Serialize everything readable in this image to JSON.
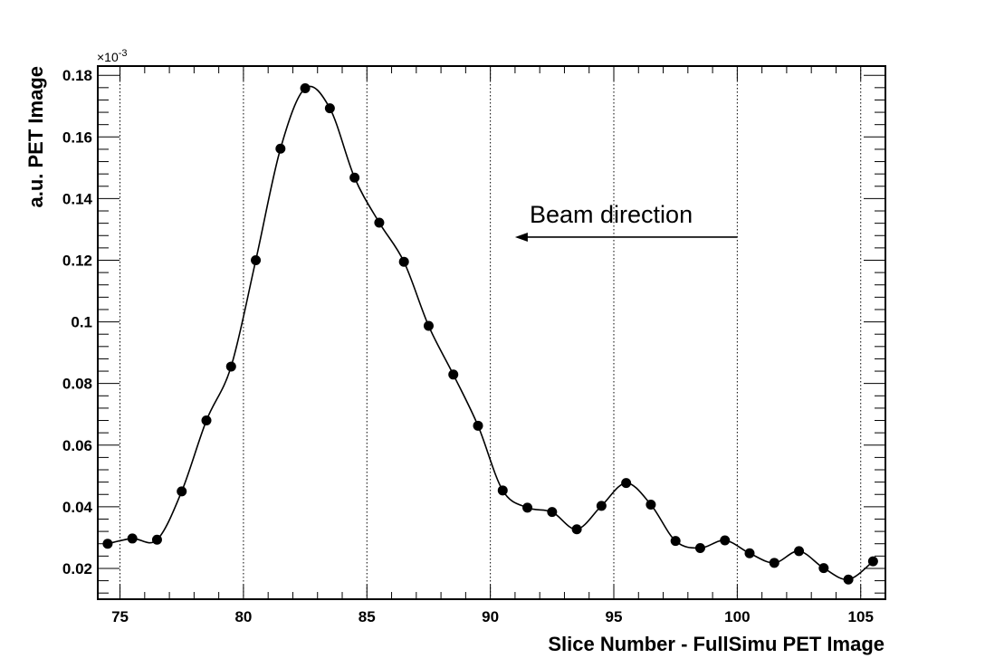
{
  "chart_data": {
    "type": "line",
    "xlabel": "Slice Number - FullSimu PET Image",
    "ylabel": "a.u. PET Image",
    "y_multiplier": "×10",
    "y_multiplier_exp": "-3",
    "xlim": [
      74.1,
      106
    ],
    "ylim": [
      0.01,
      0.183
    ],
    "x_ticks": [
      75,
      80,
      85,
      90,
      95,
      100,
      105
    ],
    "x_tick_labels": [
      "75",
      "80",
      "85",
      "90",
      "95",
      "100",
      "105"
    ],
    "y_ticks": [
      0.02,
      0.04,
      0.06,
      0.08,
      0.1,
      0.12,
      0.14,
      0.16,
      0.18
    ],
    "y_tick_labels": [
      "0.02",
      "0.04",
      "0.06",
      "0.08",
      "0.1",
      "0.12",
      "0.14",
      "0.16",
      "0.18"
    ],
    "grid": "vertical dotted at major x ticks",
    "smooth_curve": true,
    "marker": "filled circle",
    "series": [
      {
        "x": [
          74.5,
          75.5,
          76.5,
          77.5,
          78.5,
          79.5,
          80.5,
          81.5,
          82.5,
          83.5,
          84.5,
          85.5,
          86.5,
          87.5,
          88.5,
          89.5,
          90.5,
          91.5,
          92.5,
          93.5,
          94.5,
          95.5,
          96.5,
          97.5,
          98.5,
          99.5,
          100.5,
          101.5,
          102.5,
          103.5,
          104.5,
          105.5
        ],
        "values": [
          0.028,
          0.0297,
          0.0293,
          0.045,
          0.068,
          0.0855,
          0.12,
          0.1562,
          0.1758,
          0.1693,
          0.1468,
          0.1322,
          0.1195,
          0.0987,
          0.0829,
          0.0663,
          0.0453,
          0.0397,
          0.0383,
          0.0327,
          0.0403,
          0.0477,
          0.0407,
          0.0289,
          0.0266,
          0.0291,
          0.0249,
          0.0218,
          0.0256,
          0.0201,
          0.0164,
          0.0223
        ]
      }
    ],
    "annotation": {
      "text": "Beam direction",
      "arrow_from_x": 100,
      "arrow_to_x": 91,
      "arrow_y": 0.1275
    }
  }
}
